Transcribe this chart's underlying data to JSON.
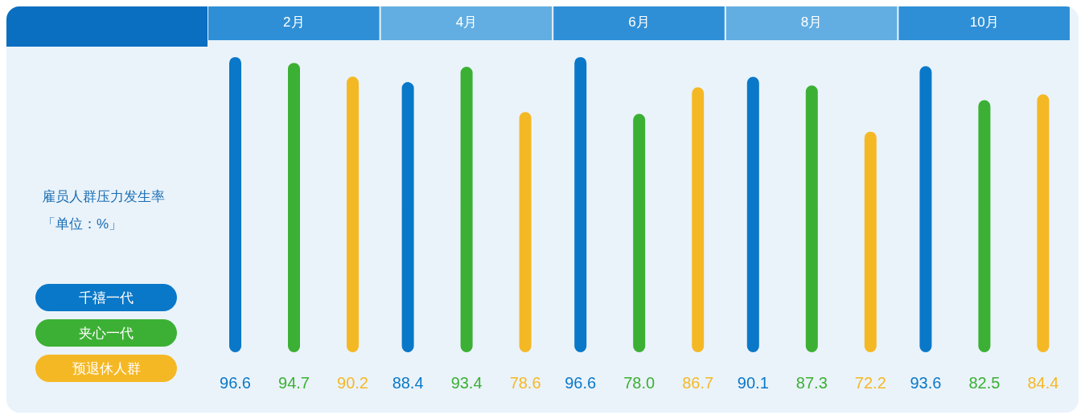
{
  "chart_data": {
    "type": "bar",
    "title": "雇员人群压力发生率",
    "subtitle": "「单位：%」",
    "categories": [
      "2月",
      "4月",
      "6月",
      "8月",
      "10月"
    ],
    "series": [
      {
        "name": "千禧一代",
        "color": "#0a78c8",
        "values": [
          96.6,
          88.4,
          96.6,
          90.1,
          93.6
        ],
        "value_labels": [
          "96.6",
          "88.4",
          "96.6",
          "90.1",
          "93.6"
        ]
      },
      {
        "name": "夹心一代",
        "color": "#3cb034",
        "values": [
          94.7,
          93.4,
          78.0,
          87.3,
          82.5
        ],
        "value_labels": [
          "94.7",
          "93.4",
          "78.0",
          "87.3",
          "82.5"
        ]
      },
      {
        "name": "预退休人群",
        "color": "#f5b825",
        "values": [
          90.2,
          78.6,
          86.7,
          72.2,
          84.4
        ],
        "value_labels": [
          "90.2",
          "78.6",
          "86.7",
          "72.2",
          "84.4"
        ]
      }
    ],
    "legend": "left"
  }
}
